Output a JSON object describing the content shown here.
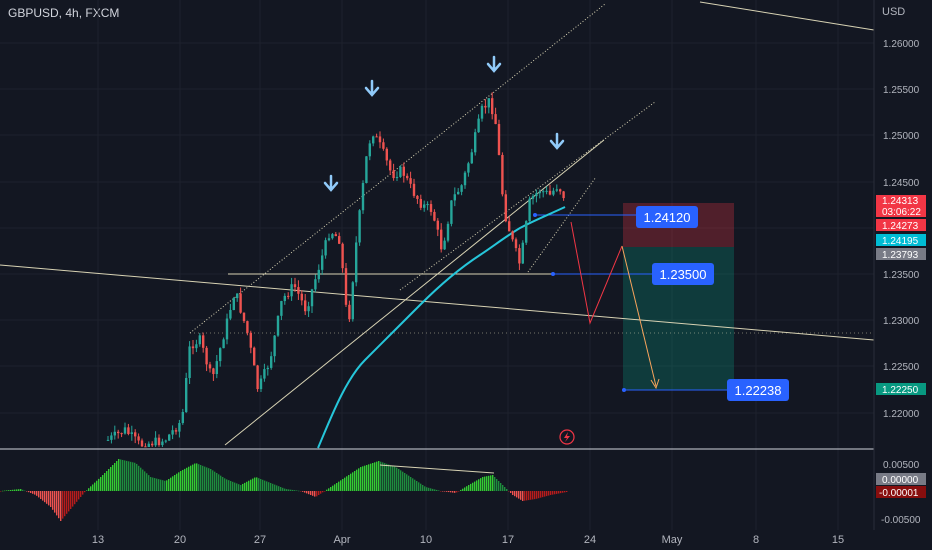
{
  "header": {
    "symbol_line": "GBPUSD, 4h, FXCM",
    "currency": "USD"
  },
  "colors": {
    "up": "#26a69a",
    "down": "#ef5350",
    "bg": "#131722",
    "ma": "#26c6da",
    "blue_box": "#2962ff"
  },
  "price_axis": {
    "ticks": [
      "1.26000",
      "1.25500",
      "1.25000",
      "1.24500",
      "1.23500",
      "1.23000",
      "1.22500",
      "1.22000"
    ],
    "tags": [
      {
        "label": "1.24313",
        "color": "#f23645"
      },
      {
        "label": "03:06:22",
        "color": "#f23645"
      },
      {
        "label": "1.24273",
        "color": "#f23645"
      },
      {
        "label": "1.24195",
        "color": "#00bcd4"
      },
      {
        "label": "1.23793",
        "color": "#787b86"
      },
      {
        "label": "1.22250",
        "color": "#089981"
      }
    ]
  },
  "osc_axis": {
    "ticks": [
      "0.00500",
      "-0.00500"
    ],
    "tags": [
      {
        "label": "0.00000",
        "color": "#787b86"
      },
      {
        "label": "-0.00001",
        "color": "#880e0e"
      }
    ]
  },
  "date_axis": {
    "labels": [
      "13",
      "20",
      "27",
      "Apr",
      "10",
      "17",
      "24",
      "May",
      "8",
      "15"
    ]
  },
  "levels": {
    "entry": {
      "label": "1.24120"
    },
    "mid": {
      "label": "1.23500"
    },
    "target": {
      "label": "1.22238"
    }
  },
  "icons": {
    "arrows": "arrow-down-icon",
    "lightning": "flash-icon"
  }
}
